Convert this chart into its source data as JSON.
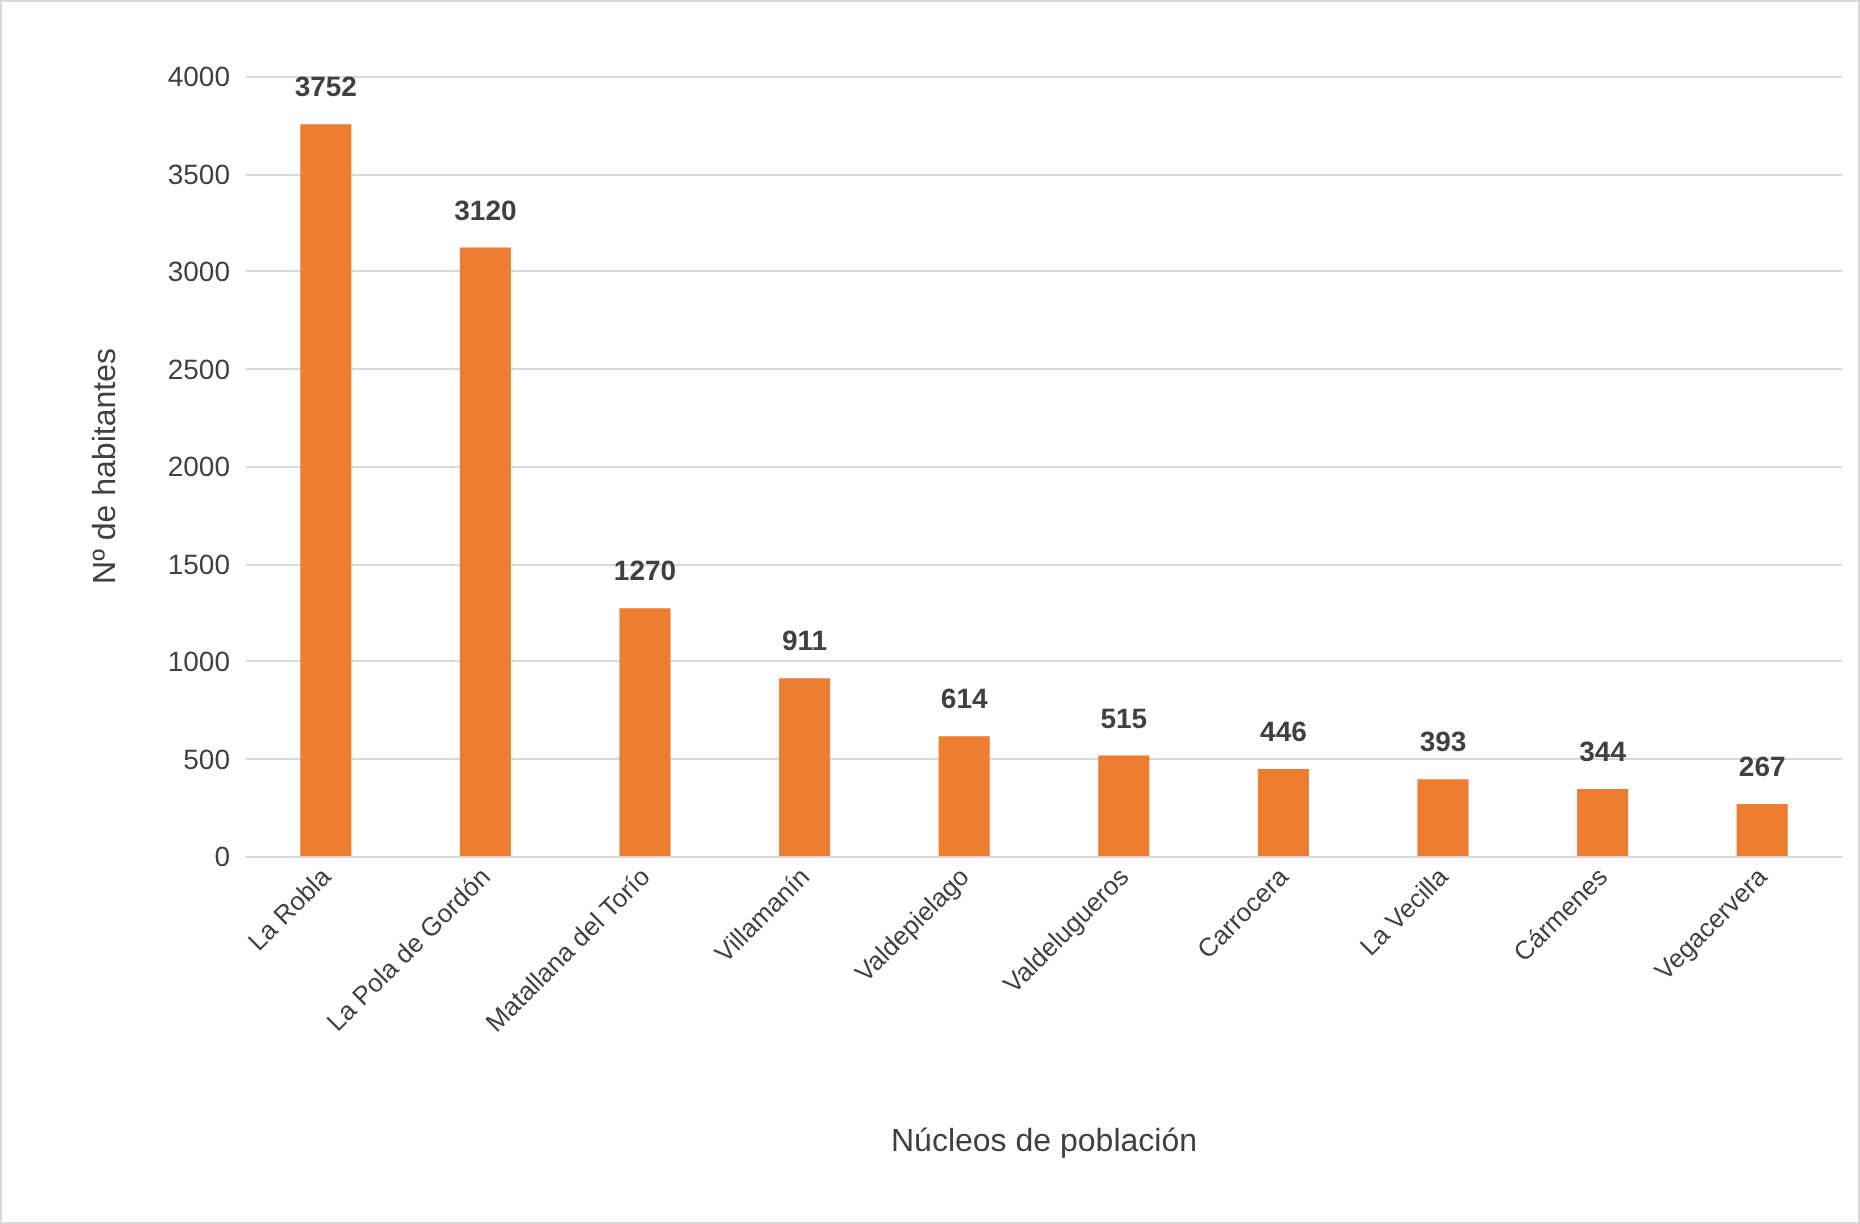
{
  "chart_data": {
    "type": "bar",
    "xlabel": "Núcleos de población",
    "ylabel": "Nº de habitantes",
    "categories": [
      "La Robla",
      "La Pola de Gordón",
      "Matallana del Torío",
      "Villamanín",
      "Valdepielago",
      "Valdelugueros",
      "Carrocera",
      "La Vecilla",
      "Cármenes",
      "Vegacervera"
    ],
    "values": [
      3752,
      3120,
      1270,
      911,
      614,
      515,
      446,
      393,
      344,
      267
    ],
    "color": "#ed7d31",
    "ylim": [
      0,
      4000
    ],
    "yticks": [
      0,
      500,
      1000,
      1500,
      2000,
      2500,
      3000,
      3500,
      4000
    ],
    "grid": "y",
    "data_labels": true
  }
}
